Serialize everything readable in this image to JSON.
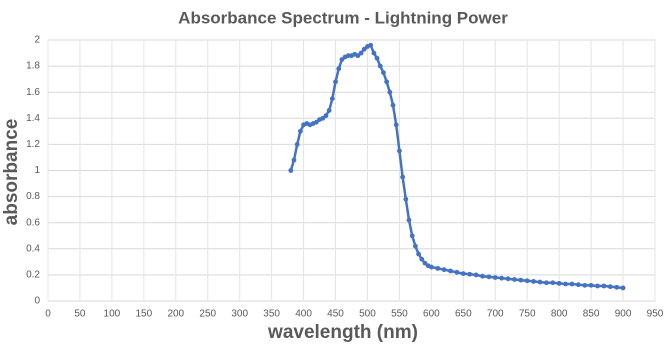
{
  "chart_data": {
    "type": "scatter",
    "title": "Absorbance Spectrum - Lightning Power",
    "x_label": "wavelength (nm)",
    "y_label": "absorbance",
    "series": [
      {
        "name": "absorbance",
        "color": "#4472c4",
        "x": [
          380,
          385,
          390,
          395,
          400,
          405,
          410,
          415,
          420,
          425,
          430,
          435,
          440,
          445,
          450,
          455,
          460,
          465,
          470,
          475,
          480,
          485,
          490,
          495,
          500,
          505,
          510,
          515,
          520,
          525,
          530,
          535,
          540,
          545,
          550,
          555,
          560,
          565,
          570,
          575,
          580,
          585,
          590,
          595,
          600,
          610,
          620,
          630,
          640,
          650,
          660,
          670,
          680,
          690,
          700,
          710,
          720,
          730,
          740,
          750,
          760,
          770,
          780,
          790,
          800,
          810,
          820,
          830,
          840,
          850,
          860,
          870,
          880,
          890,
          900
        ],
        "values": [
          1.0,
          1.08,
          1.2,
          1.3,
          1.35,
          1.36,
          1.35,
          1.36,
          1.37,
          1.39,
          1.4,
          1.42,
          1.46,
          1.55,
          1.68,
          1.78,
          1.85,
          1.87,
          1.88,
          1.88,
          1.89,
          1.88,
          1.9,
          1.93,
          1.95,
          1.96,
          1.9,
          1.86,
          1.8,
          1.75,
          1.68,
          1.6,
          1.5,
          1.35,
          1.15,
          0.95,
          0.78,
          0.62,
          0.5,
          0.42,
          0.36,
          0.32,
          0.29,
          0.27,
          0.26,
          0.25,
          0.24,
          0.23,
          0.22,
          0.21,
          0.205,
          0.2,
          0.19,
          0.185,
          0.18,
          0.175,
          0.17,
          0.165,
          0.16,
          0.155,
          0.15,
          0.145,
          0.14,
          0.14,
          0.135,
          0.13,
          0.13,
          0.125,
          0.12,
          0.12,
          0.115,
          0.115,
          0.11,
          0.105,
          0.1
        ]
      }
    ],
    "xlim": [
      0,
      950
    ],
    "xticks": [
      0,
      50,
      100,
      150,
      200,
      250,
      300,
      350,
      400,
      450,
      500,
      550,
      600,
      650,
      700,
      750,
      800,
      850,
      900,
      950
    ],
    "ylim": [
      0,
      2
    ],
    "yticks": [
      0,
      0.2,
      0.4,
      0.6,
      0.8,
      1,
      1.2,
      1.4,
      1.6,
      1.8,
      2
    ],
    "grid": true
  }
}
